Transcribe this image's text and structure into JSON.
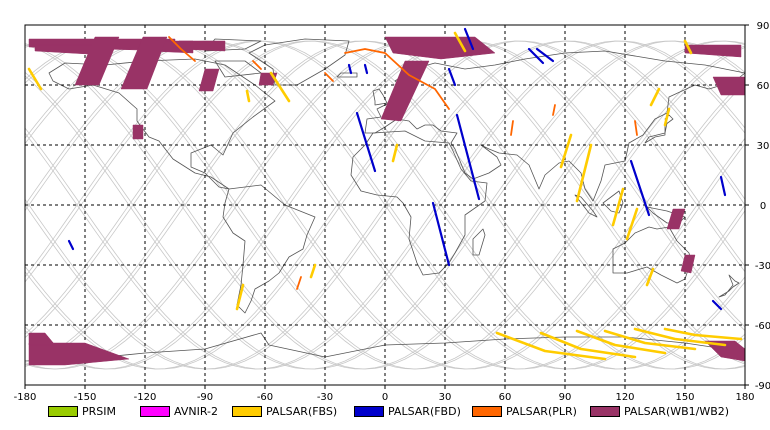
{
  "map": {
    "x_ticks": [
      "-180",
      "-150",
      "-120",
      "-90",
      "-60",
      "-30",
      "0",
      "30",
      "60",
      "90",
      "120",
      "150",
      "180"
    ],
    "y_ticks": [
      "90",
      "60",
      "30",
      "0",
      "-30",
      "-60",
      "-90"
    ],
    "lon_range": [
      -180,
      180
    ],
    "lat_range": [
      -90,
      90
    ],
    "grid": true,
    "grid_style": "dashed",
    "colors": {
      "prsim": "#99cc00",
      "avnir2": "#ff00ff",
      "palsar_fbs": "#ffcc00",
      "palsar_fbd": "#0000cc",
      "palsar_plr": "#ff6600",
      "palsar_wb": "#993366",
      "orbit": "#c8c8c8",
      "coast": "#555555"
    }
  },
  "legend": {
    "items": [
      {
        "label": "PRSIM",
        "color": "#99cc00"
      },
      {
        "label": "AVNIR-2",
        "color": "#ff00ff"
      },
      {
        "label": "PALSAR(FBS)",
        "color": "#ffcc00"
      },
      {
        "label": "PALSAR(FBD)",
        "color": "#0000cc"
      },
      {
        "label": "PALSAR(PLR)",
        "color": "#ff6600"
      },
      {
        "label": "PALSAR(WB1/WB2)",
        "color": "#993366"
      }
    ]
  },
  "acquisitions": {
    "wb": [
      [
        [
          -178,
          83
        ],
        [
          -105,
          83
        ],
        [
          -105,
          77
        ],
        [
          -178,
          79
        ]
      ],
      [
        [
          -118,
          82
        ],
        [
          -96,
          82
        ],
        [
          -96,
          76
        ],
        [
          -118,
          77
        ]
      ],
      [
        [
          -103,
          82
        ],
        [
          -80,
          82
        ],
        [
          -80,
          77
        ],
        [
          -103,
          78
        ]
      ],
      [
        [
          -175,
          80
        ],
        [
          -140,
          80
        ],
        [
          -140,
          75
        ],
        [
          -175,
          77
        ]
      ],
      [
        [
          -145,
          84
        ],
        [
          -133,
          84
        ],
        [
          -143,
          60
        ],
        [
          -155,
          60
        ]
      ],
      [
        [
          -121,
          84
        ],
        [
          -109,
          84
        ],
        [
          -119,
          58
        ],
        [
          -132,
          58
        ]
      ],
      [
        [
          -90,
          68
        ],
        [
          -83,
          68
        ],
        [
          -86,
          57
        ],
        [
          -93,
          57
        ]
      ],
      [
        [
          -126,
          40
        ],
        [
          -121,
          40
        ],
        [
          -121,
          33
        ],
        [
          -126,
          33
        ]
      ],
      [
        [
          -62,
          66
        ],
        [
          -54,
          66
        ],
        [
          -56,
          60
        ],
        [
          -63,
          60
        ]
      ],
      [
        [
          0,
          84
        ],
        [
          45,
          84
        ],
        [
          55,
          76
        ],
        [
          28,
          73
        ],
        [
          4,
          76
        ]
      ],
      [
        [
          10,
          72
        ],
        [
          22,
          72
        ],
        [
          8,
          42
        ],
        [
          -2,
          43
        ]
      ],
      [
        [
          150,
          80
        ],
        [
          178,
          80
        ],
        [
          178,
          74
        ],
        [
          150,
          76
        ]
      ],
      [
        [
          164,
          64
        ],
        [
          180,
          64
        ],
        [
          180,
          55
        ],
        [
          168,
          55
        ]
      ],
      [
        [
          144,
          -2
        ],
        [
          150,
          -2
        ],
        [
          147,
          -12
        ],
        [
          141,
          -12
        ]
      ],
      [
        [
          150,
          -25
        ],
        [
          155,
          -25
        ],
        [
          153,
          -34
        ],
        [
          148,
          -33
        ]
      ],
      [
        [
          -178,
          -69
        ],
        [
          -150,
          -69
        ],
        [
          -128,
          -77
        ],
        [
          -160,
          -80
        ],
        [
          -178,
          -80
        ]
      ],
      [
        [
          -178,
          -64
        ],
        [
          -170,
          -64
        ],
        [
          -165,
          -70
        ],
        [
          -178,
          -70
        ]
      ],
      [
        [
          160,
          -68
        ],
        [
          175,
          -68
        ],
        [
          180,
          -72
        ],
        [
          180,
          -78
        ],
        [
          168,
          -76
        ]
      ]
    ],
    "fbs": [
      [
        [
          -178,
          68
        ],
        [
          -172,
          58
        ]
      ],
      [
        [
          -57,
          66
        ],
        [
          -48,
          52
        ]
      ],
      [
        [
          -69,
          57
        ],
        [
          -68,
          52
        ]
      ],
      [
        [
          6,
          30
        ],
        [
          4,
          22
        ]
      ],
      [
        [
          35,
          86
        ],
        [
          40,
          77
        ]
      ],
      [
        [
          93,
          35
        ],
        [
          88,
          19
        ]
      ],
      [
        [
          103,
          30
        ],
        [
          96,
          2
        ]
      ],
      [
        [
          119,
          8
        ],
        [
          114,
          -10
        ]
      ],
      [
        [
          126,
          -2
        ],
        [
          121,
          -17
        ]
      ],
      [
        [
          134,
          -32
        ],
        [
          131,
          -40
        ]
      ],
      [
        [
          137,
          58
        ],
        [
          133,
          50
        ]
      ],
      [
        [
          142,
          48
        ],
        [
          140,
          40
        ]
      ],
      [
        [
          150,
          82
        ],
        [
          153,
          76
        ]
      ],
      [
        [
          56,
          -64
        ],
        [
          80,
          -73
        ],
        [
          110,
          -77
        ]
      ],
      [
        [
          78,
          -64
        ],
        [
          98,
          -72
        ],
        [
          125,
          -76
        ]
      ],
      [
        [
          96,
          -63
        ],
        [
          115,
          -70
        ],
        [
          140,
          -74
        ]
      ],
      [
        [
          110,
          -63
        ],
        [
          130,
          -69
        ],
        [
          155,
          -72
        ]
      ],
      [
        [
          125,
          -62
        ],
        [
          145,
          -67
        ],
        [
          170,
          -70
        ]
      ],
      [
        [
          140,
          -62
        ],
        [
          155,
          -65
        ],
        [
          178,
          -67
        ]
      ],
      [
        [
          -71,
          -40
        ],
        [
          -74,
          -52
        ]
      ],
      [
        [
          -35,
          -30
        ],
        [
          -37,
          -36
        ]
      ]
    ],
    "fbd": [
      [
        [
          40,
          88
        ],
        [
          44,
          78
        ]
      ],
      [
        [
          76,
          78
        ],
        [
          84,
          72
        ]
      ],
      [
        [
          72,
          78
        ],
        [
          79,
          71
        ]
      ],
      [
        [
          32,
          68
        ],
        [
          35,
          60
        ]
      ],
      [
        [
          -18,
          70
        ],
        [
          -17,
          66
        ]
      ],
      [
        [
          -10,
          70
        ],
        [
          -9,
          66
        ]
      ],
      [
        [
          -14,
          46
        ],
        [
          -5,
          17
        ]
      ],
      [
        [
          36,
          45
        ],
        [
          47,
          3
        ]
      ],
      [
        [
          24,
          1
        ],
        [
          32,
          -30
        ]
      ],
      [
        [
          123,
          22
        ],
        [
          132,
          -5
        ]
      ],
      [
        [
          168,
          14
        ],
        [
          170,
          5
        ]
      ],
      [
        [
          -158,
          -18
        ],
        [
          -156,
          -22
        ]
      ],
      [
        [
          164,
          -48
        ],
        [
          168,
          -52
        ]
      ]
    ],
    "plr": [
      [
        [
          -20,
          76
        ],
        [
          -10,
          78
        ],
        [
          0,
          76
        ],
        [
          12,
          65
        ],
        [
          25,
          58
        ],
        [
          32,
          48
        ]
      ],
      [
        [
          -108,
          84
        ],
        [
          -102,
          78
        ],
        [
          -95,
          72
        ]
      ],
      [
        [
          -66,
          72
        ],
        [
          -62,
          68
        ]
      ],
      [
        [
          -30,
          66
        ],
        [
          -26,
          62
        ]
      ],
      [
        [
          64,
          42
        ],
        [
          63,
          35
        ]
      ],
      [
        [
          85,
          50
        ],
        [
          84,
          45
        ]
      ],
      [
        [
          125,
          42
        ],
        [
          126,
          35
        ]
      ],
      [
        [
          -42,
          -36
        ],
        [
          -44,
          -42
        ]
      ]
    ]
  }
}
